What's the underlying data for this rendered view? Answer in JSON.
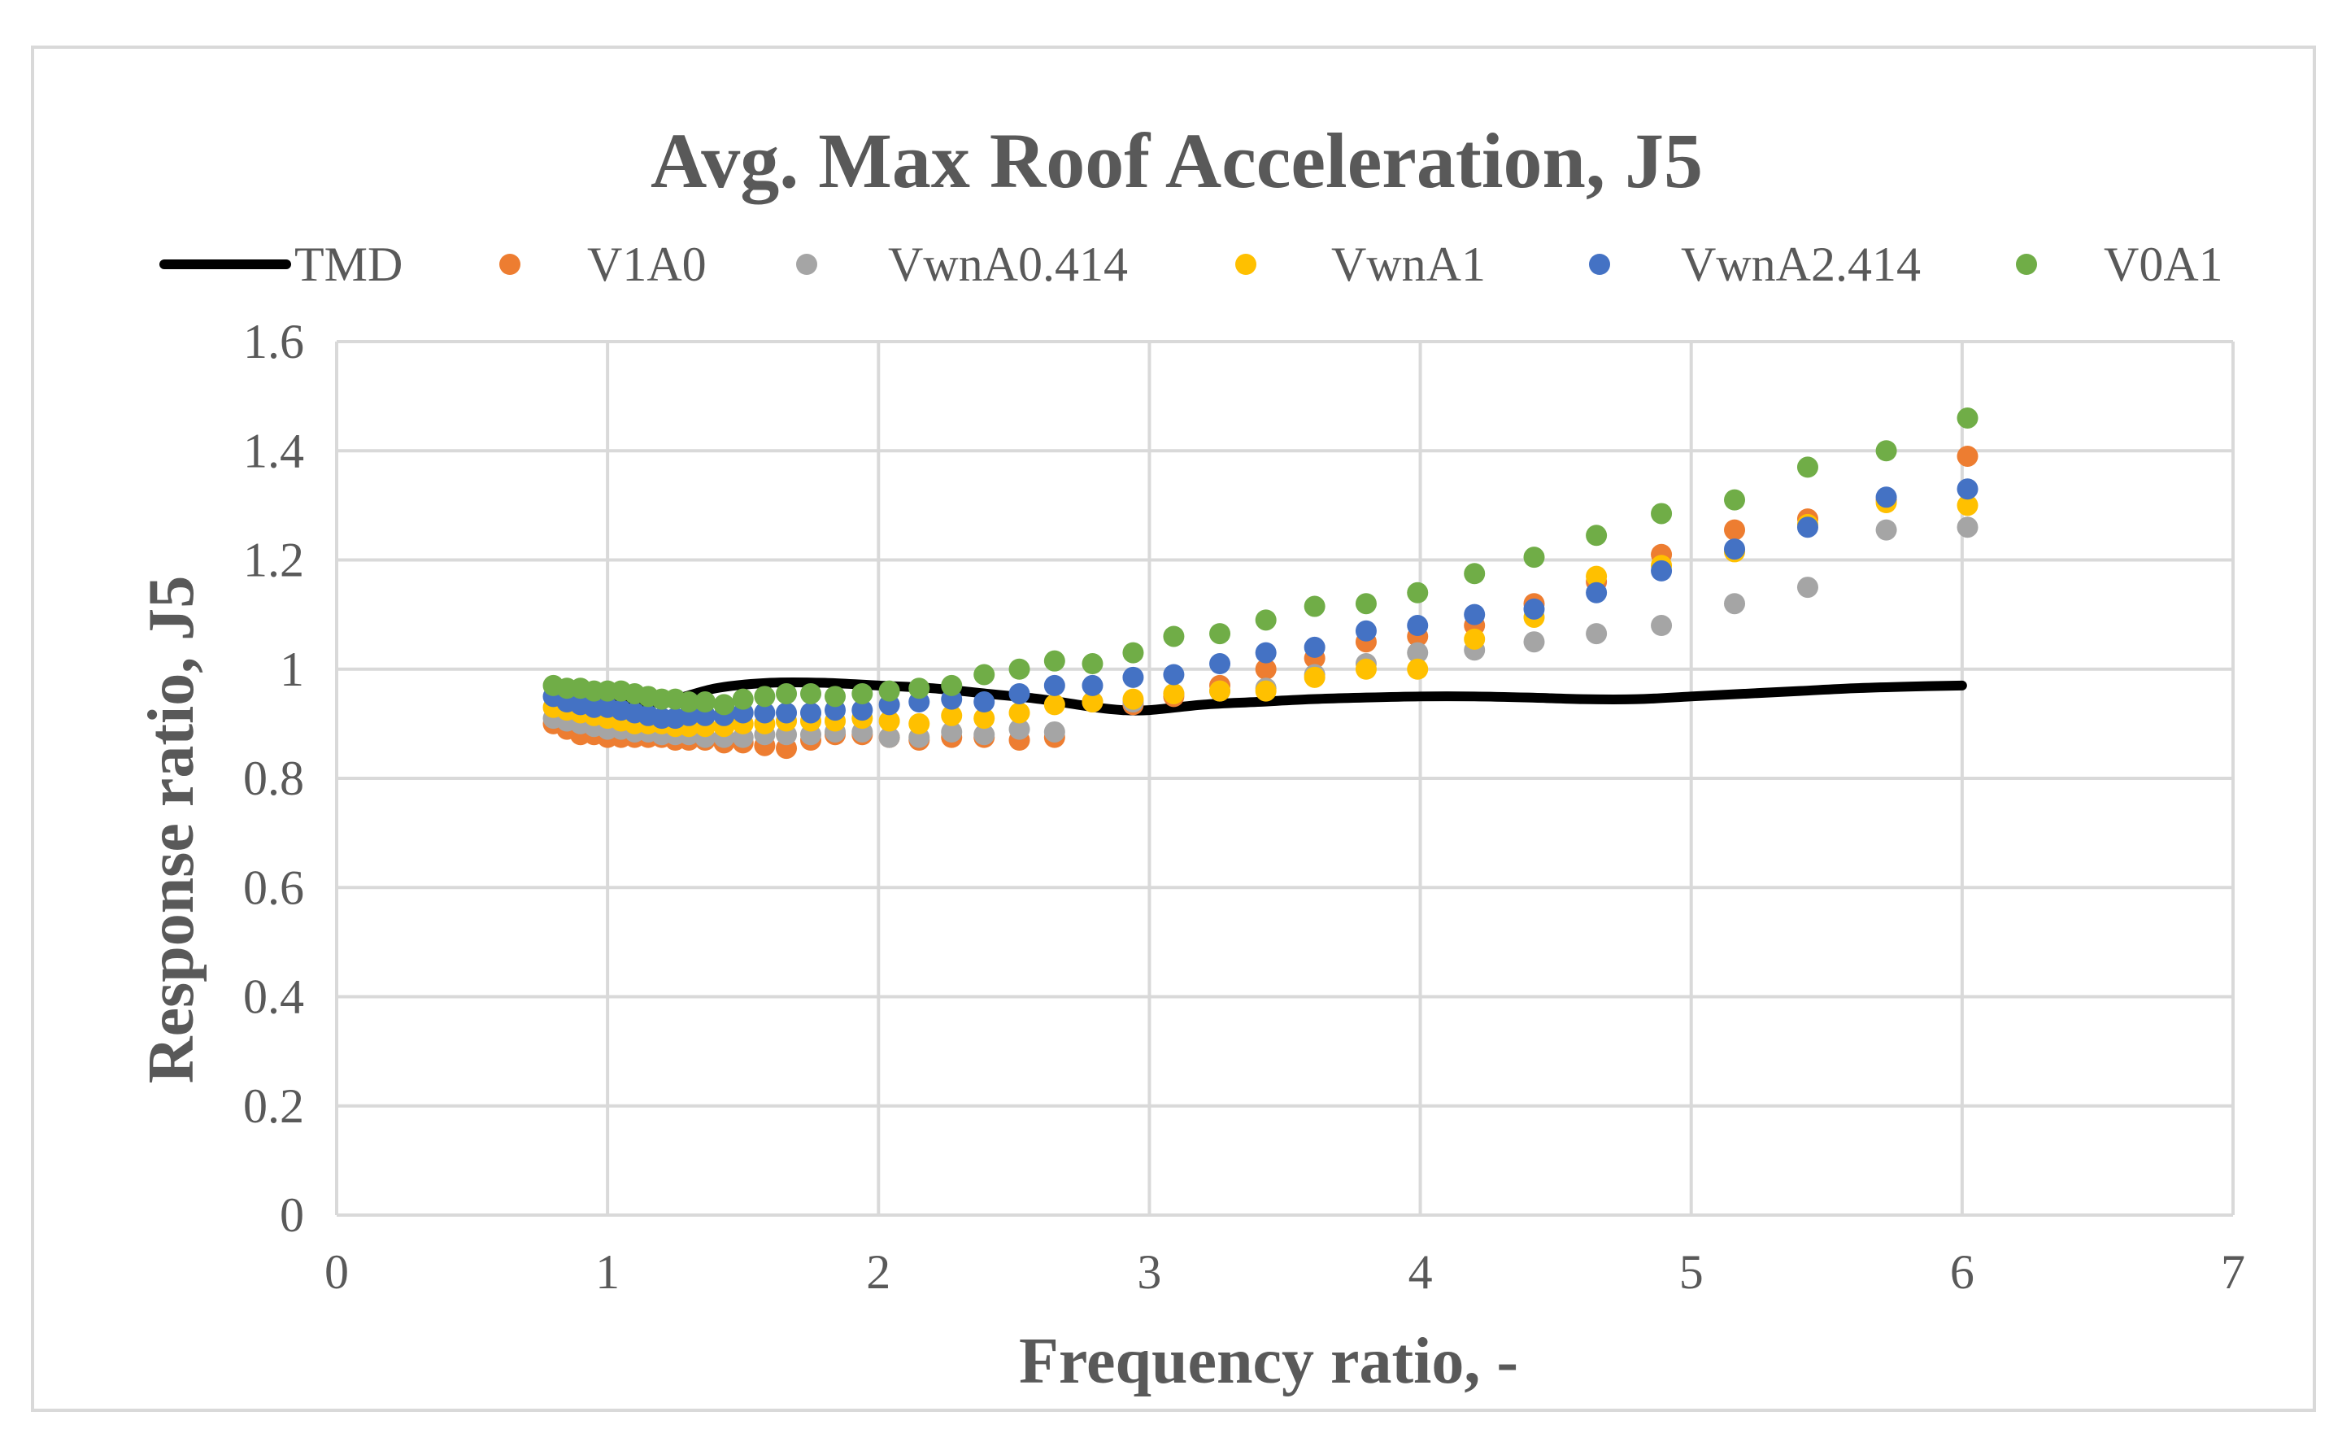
{
  "chart_data": {
    "type": "scatter",
    "title": "Avg. Max Roof Acceleration, J5",
    "xlabel": "Frequency ratio, -",
    "ylabel": "Response ratio, J5",
    "xlim": [
      0,
      7
    ],
    "ylim": [
      0,
      1.6
    ],
    "x_ticks": [
      "0",
      "1",
      "2",
      "3",
      "4",
      "5",
      "6",
      "7"
    ],
    "y_ticks": [
      "0",
      "0.2",
      "0.4",
      "0.6",
      "0.8",
      "1",
      "1.2",
      "1.4",
      "1.6"
    ],
    "grid": true,
    "legend_position": "top",
    "series": [
      {
        "name": "TMD",
        "kind": "line",
        "color": "#000000",
        "x": [
          0.8,
          1.0,
          1.2,
          1.4,
          1.6,
          1.8,
          2.0,
          2.2,
          2.4,
          2.6,
          2.8,
          2.9,
          3.0,
          3.2,
          3.4,
          3.6,
          3.8,
          4.0,
          4.2,
          4.4,
          4.6,
          4.8,
          5.0,
          5.2,
          5.4,
          5.6,
          5.8,
          6.0
        ],
        "y": [
          0.94,
          0.94,
          0.94,
          0.965,
          0.975,
          0.975,
          0.97,
          0.965,
          0.955,
          0.945,
          0.93,
          0.925,
          0.925,
          0.935,
          0.94,
          0.945,
          0.948,
          0.95,
          0.95,
          0.948,
          0.945,
          0.945,
          0.95,
          0.955,
          0.96,
          0.965,
          0.968,
          0.97
        ]
      },
      {
        "name": "V1A0",
        "kind": "scatter",
        "color": "#ed7d31",
        "x": [
          0.8,
          0.85,
          0.9,
          0.95,
          1.0,
          1.05,
          1.1,
          1.15,
          1.2,
          1.25,
          1.3,
          1.36,
          1.43,
          1.5,
          1.58,
          1.66,
          1.75,
          1.84,
          1.94,
          2.04,
          2.15,
          2.27,
          2.39,
          2.52,
          2.65,
          2.79,
          2.94,
          3.09,
          3.26,
          3.43,
          3.61,
          3.8,
          3.99,
          4.2,
          4.42,
          4.65,
          4.89,
          5.16,
          5.43,
          5.72,
          6.02
        ],
        "y": [
          0.9,
          0.89,
          0.88,
          0.88,
          0.875,
          0.875,
          0.875,
          0.875,
          0.875,
          0.87,
          0.87,
          0.87,
          0.865,
          0.865,
          0.86,
          0.855,
          0.87,
          0.88,
          0.88,
          0.875,
          0.87,
          0.875,
          0.875,
          0.87,
          0.875,
          0.94,
          0.935,
          0.95,
          0.97,
          1.0,
          1.02,
          1.05,
          1.06,
          1.08,
          1.12,
          1.16,
          1.21,
          1.255,
          1.275,
          1.31,
          1.39
        ]
      },
      {
        "name": "VwnA0.414",
        "kind": "scatter",
        "color": "#a5a5a5",
        "x": [
          0.8,
          0.85,
          0.9,
          0.95,
          1.0,
          1.05,
          1.1,
          1.15,
          1.2,
          1.25,
          1.3,
          1.36,
          1.43,
          1.5,
          1.58,
          1.66,
          1.75,
          1.84,
          1.94,
          2.04,
          2.15,
          2.27,
          2.39,
          2.52,
          2.65,
          2.79,
          2.94,
          3.09,
          3.26,
          3.43,
          3.61,
          3.8,
          3.99,
          4.2,
          4.42,
          4.65,
          4.89,
          5.16,
          5.43,
          5.72,
          6.02
        ],
        "y": [
          0.91,
          0.905,
          0.9,
          0.895,
          0.89,
          0.89,
          0.885,
          0.885,
          0.88,
          0.88,
          0.88,
          0.875,
          0.875,
          0.875,
          0.88,
          0.88,
          0.88,
          0.885,
          0.885,
          0.875,
          0.875,
          0.885,
          0.88,
          0.89,
          0.885,
          0.94,
          0.94,
          0.955,
          0.96,
          0.965,
          0.99,
          1.01,
          1.03,
          1.035,
          1.05,
          1.065,
          1.08,
          1.12,
          1.15,
          1.255,
          1.26
        ]
      },
      {
        "name": "VwnA1",
        "kind": "scatter",
        "color": "#ffc000",
        "x": [
          0.8,
          0.85,
          0.9,
          0.95,
          1.0,
          1.05,
          1.1,
          1.15,
          1.2,
          1.25,
          1.3,
          1.36,
          1.43,
          1.5,
          1.58,
          1.66,
          1.75,
          1.84,
          1.94,
          2.04,
          2.15,
          2.27,
          2.39,
          2.52,
          2.65,
          2.79,
          2.94,
          3.09,
          3.26,
          3.43,
          3.61,
          3.8,
          3.99,
          4.2,
          4.42,
          4.65,
          4.89,
          5.16,
          5.43,
          5.72,
          6.02
        ],
        "y": [
          0.93,
          0.925,
          0.92,
          0.915,
          0.91,
          0.905,
          0.9,
          0.9,
          0.9,
          0.895,
          0.895,
          0.895,
          0.895,
          0.9,
          0.9,
          0.905,
          0.905,
          0.905,
          0.91,
          0.905,
          0.9,
          0.915,
          0.91,
          0.92,
          0.935,
          0.94,
          0.945,
          0.955,
          0.96,
          0.96,
          0.985,
          1.0,
          1.0,
          1.055,
          1.095,
          1.17,
          1.19,
          1.215,
          1.265,
          1.305,
          1.3
        ]
      },
      {
        "name": "VwnA2.414",
        "kind": "scatter",
        "color": "#4472c4",
        "x": [
          0.8,
          0.85,
          0.9,
          0.95,
          1.0,
          1.05,
          1.1,
          1.15,
          1.2,
          1.25,
          1.3,
          1.36,
          1.43,
          1.5,
          1.58,
          1.66,
          1.75,
          1.84,
          1.94,
          2.04,
          2.15,
          2.27,
          2.39,
          2.52,
          2.65,
          2.79,
          2.94,
          3.09,
          3.26,
          3.43,
          3.61,
          3.8,
          3.99,
          4.2,
          4.42,
          4.65,
          4.89,
          5.16,
          5.43,
          5.72,
          6.02
        ],
        "y": [
          0.95,
          0.94,
          0.935,
          0.93,
          0.93,
          0.925,
          0.92,
          0.915,
          0.91,
          0.91,
          0.915,
          0.915,
          0.915,
          0.92,
          0.92,
          0.92,
          0.92,
          0.925,
          0.925,
          0.935,
          0.94,
          0.945,
          0.94,
          0.955,
          0.97,
          0.97,
          0.985,
          0.99,
          1.01,
          1.03,
          1.04,
          1.07,
          1.08,
          1.1,
          1.11,
          1.14,
          1.18,
          1.22,
          1.26,
          1.315,
          1.33
        ]
      },
      {
        "name": "V0A1",
        "kind": "scatter",
        "color": "#70ad47",
        "x": [
          0.8,
          0.85,
          0.9,
          0.95,
          1.0,
          1.05,
          1.1,
          1.15,
          1.2,
          1.25,
          1.3,
          1.36,
          1.43,
          1.5,
          1.58,
          1.66,
          1.75,
          1.84,
          1.94,
          2.04,
          2.15,
          2.27,
          2.39,
          2.52,
          2.65,
          2.79,
          2.94,
          3.09,
          3.26,
          3.43,
          3.61,
          3.8,
          3.99,
          4.2,
          4.42,
          4.65,
          4.89,
          5.16,
          5.43,
          5.72,
          6.02
        ],
        "y": [
          0.97,
          0.965,
          0.965,
          0.96,
          0.96,
          0.96,
          0.955,
          0.95,
          0.945,
          0.945,
          0.94,
          0.94,
          0.935,
          0.945,
          0.95,
          0.955,
          0.955,
          0.95,
          0.955,
          0.96,
          0.965,
          0.97,
          0.99,
          1.0,
          1.015,
          1.01,
          1.03,
          1.06,
          1.065,
          1.09,
          1.115,
          1.12,
          1.14,
          1.175,
          1.205,
          1.245,
          1.285,
          1.31,
          1.37,
          1.4,
          1.46
        ]
      }
    ]
  }
}
